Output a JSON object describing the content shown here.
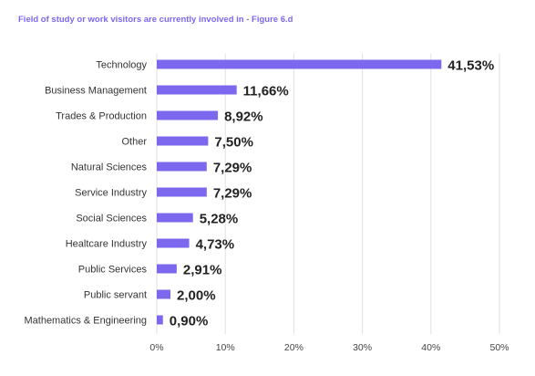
{
  "title": "Field of study or work visitors are currently involved in - Figure 6.d",
  "colors": {
    "bar": "#7b68ee",
    "title": "#7b68ee",
    "grid": "#e2e2e2"
  },
  "chart_data": {
    "type": "bar",
    "orientation": "horizontal",
    "title": "Field of study or work visitors are currently involved in - Figure 6.d",
    "categories": [
      "Technology",
      "Business Management",
      "Trades & Production",
      "Other",
      "Natural Sciences",
      "Service Industry",
      "Social Sciences",
      "Healtcare Industry",
      "Public Services",
      "Public servant",
      "Mathematics & Engineering"
    ],
    "values": [
      41.53,
      11.66,
      8.92,
      7.5,
      7.29,
      7.29,
      5.28,
      4.73,
      2.91,
      2.0,
      0.9
    ],
    "value_labels": [
      "41,53%",
      "11,66%",
      "8,92%",
      "7,50%",
      "7,29%",
      "7,29%",
      "5,28%",
      "4,73%",
      "2,91%",
      "2,00%",
      "0,90%"
    ],
    "xlim": [
      0,
      50
    ],
    "xticks": [
      "0%",
      "10%",
      "20%",
      "30%",
      "40%",
      "50%"
    ],
    "grid": true,
    "legend": "none"
  }
}
